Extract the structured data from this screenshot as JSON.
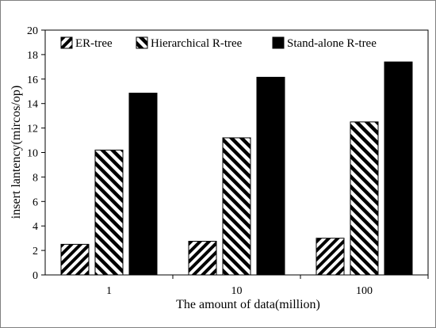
{
  "chart_data": {
    "type": "bar",
    "categories": [
      "1",
      "10",
      "100"
    ],
    "series": [
      {
        "name": "ER-tree",
        "values": [
          2.5,
          2.75,
          3.0
        ],
        "pattern": "sparse-diagonal"
      },
      {
        "name": "Hierarchical R-tree",
        "values": [
          10.2,
          11.2,
          12.5
        ],
        "pattern": "dense-diagonal"
      },
      {
        "name": "Stand-alone R-tree",
        "values": [
          14.85,
          16.15,
          17.4
        ],
        "pattern": "solid"
      }
    ],
    "xlabel": "The amount of data(million)",
    "ylabel": "insert lantency(mircos/op)",
    "ylim": [
      0,
      20
    ],
    "yticks": [
      "0",
      "2",
      "4",
      "6",
      "8",
      "10",
      "12",
      "14",
      "16",
      "18",
      "20"
    ],
    "grid": false,
    "legend_position": "top",
    "colors": {
      "bar_stroke": "#000000",
      "fill": "#000000",
      "background": "#ffffff"
    }
  }
}
